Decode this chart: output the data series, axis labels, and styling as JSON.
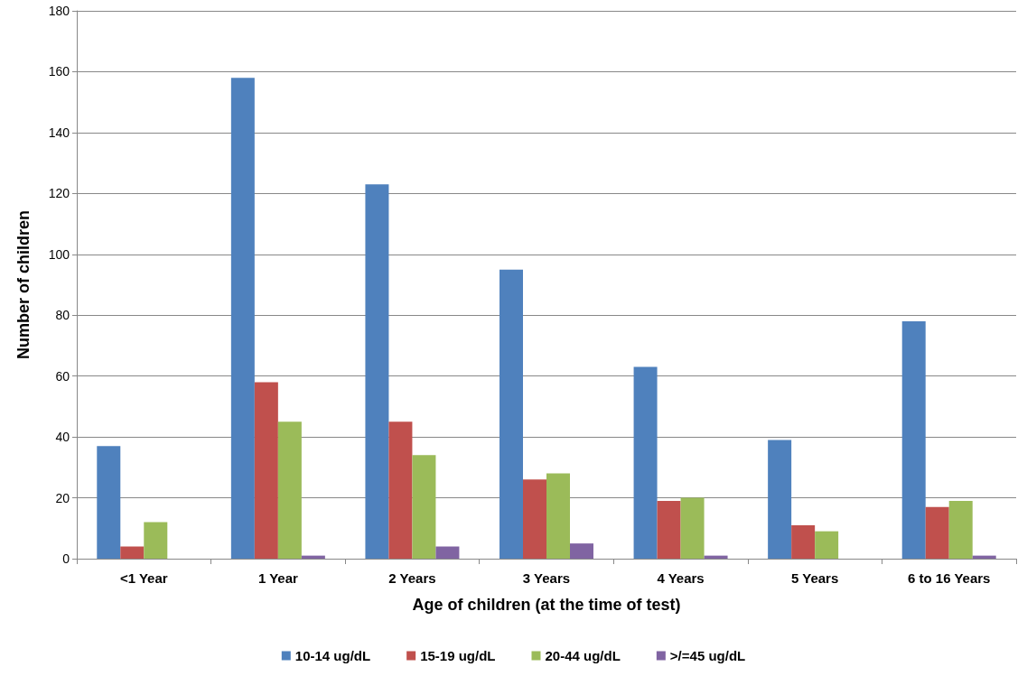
{
  "chart_data": {
    "type": "bar",
    "xlabel": "Age of children (at the time of test)",
    "ylabel": "Number of children",
    "categories": [
      "<1 Year",
      "1 Year",
      "2 Years",
      "3 Years",
      "4 Years",
      "5 Years",
      "6 to 16 Years"
    ],
    "series": [
      {
        "name": "10-14 ug/dL",
        "color": "#4f81bd",
        "values": [
          37,
          158,
          123,
          95,
          63,
          39,
          78
        ]
      },
      {
        "name": "15-19 ug/dL",
        "color": "#c0504d",
        "values": [
          4,
          58,
          45,
          26,
          19,
          11,
          17
        ]
      },
      {
        "name": "20-44 ug/dL",
        "color": "#9bbb59",
        "values": [
          12,
          45,
          34,
          28,
          20,
          9,
          19
        ]
      },
      {
        "name": ">/=45 ug/dL",
        "color": "#8064a2",
        "values": [
          0,
          1,
          4,
          5,
          1,
          0,
          1
        ]
      }
    ],
    "ylim": [
      0,
      180
    ],
    "yticks": [
      0,
      20,
      40,
      60,
      80,
      100,
      120,
      140,
      160,
      180
    ],
    "grid": "y",
    "legend": "bottom"
  }
}
